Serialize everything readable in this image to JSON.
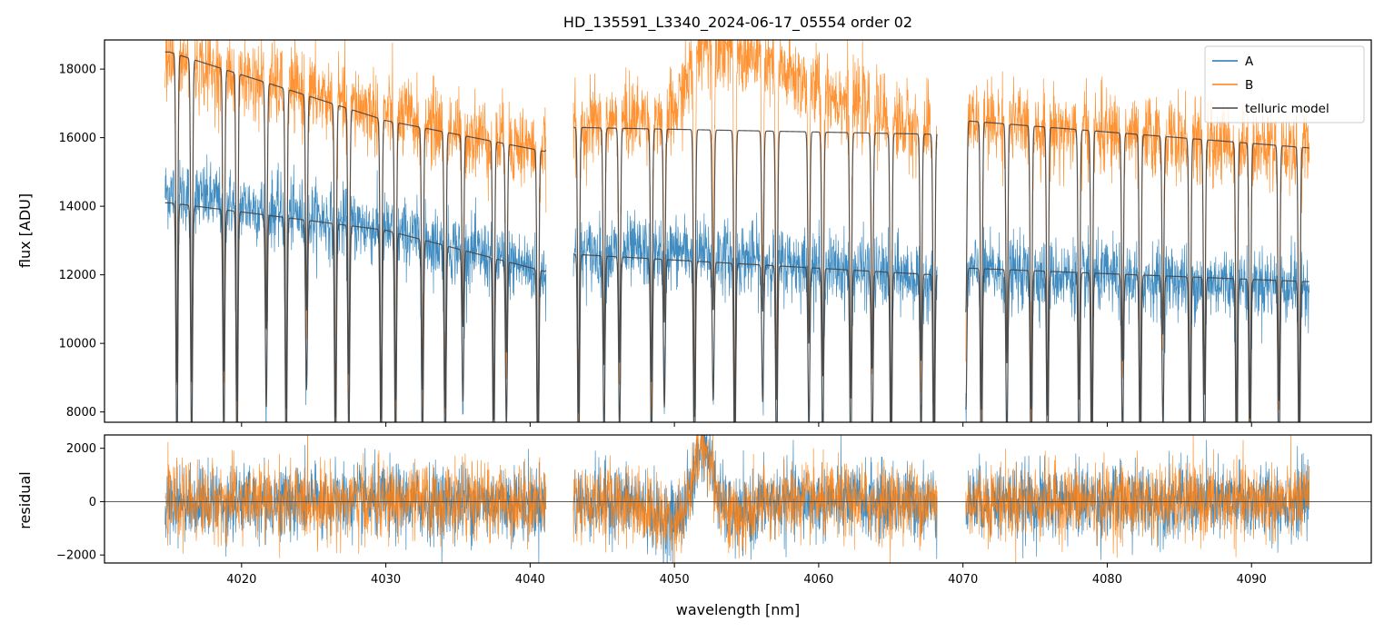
{
  "chart_data": [
    {
      "type": "line",
      "title": "HD_135591_L3340_2024-06-17_05554  order 02",
      "ylabel": "flux [ADU]",
      "xlabel": "",
      "xlim": [
        4010.5,
        4098.3
      ],
      "ylim": [
        7700,
        18850
      ],
      "x_ticks": [
        4020,
        4030,
        4040,
        4050,
        4060,
        4070,
        4080,
        4090
      ],
      "y_ticks": [
        8000,
        10000,
        12000,
        14000,
        16000,
        18000
      ],
      "y_tick_labels": [
        "8000",
        "10000",
        "12000",
        "14000",
        "16000",
        "18000"
      ],
      "x_tick_labels_shown": false,
      "legend_position": "top-right",
      "data_segments": [
        [
          4014.7,
          4041.1
        ],
        [
          4043.0,
          4068.2
        ],
        [
          4070.2,
          4094.0
        ]
      ],
      "series": [
        {
          "name": "A",
          "color": "#1f77b4",
          "description_points": {
            "x": [
              4015,
              4030,
              4041,
              4043,
              4050,
              4068,
              4070,
              4094
            ],
            "level": [
              14400,
              13300,
              12100,
              12600,
              12700,
              11900,
              12100,
              11700
            ]
          }
        },
        {
          "name": "B",
          "color": "#ff7f0e",
          "description_points": {
            "x": [
              4015,
              4030,
              4041,
              4043,
              4050,
              4052,
              4068,
              4070,
              4094
            ],
            "level": [
              18300,
              16700,
              15600,
              16300,
              16700,
              18900,
              16000,
              16500,
              15600
            ]
          }
        },
        {
          "name": "telluric model",
          "color": "#444444",
          "description_points": {
            "x": [
              4015,
              4030,
              4041,
              4043,
              4068,
              4070,
              4094
            ],
            "level_B": [
              18500,
              16500,
              15600,
              16300,
              16100,
              16500,
              15700
            ],
            "level_A": [
              14100,
              13300,
              12100,
              12600,
              12000,
              12200,
              11800
            ]
          }
        }
      ]
    },
    {
      "type": "line",
      "title": "",
      "xlabel": "wavelength [nm]",
      "ylabel": "residual",
      "xlim": [
        4010.5,
        4098.3
      ],
      "ylim": [
        -2300,
        2500
      ],
      "x_ticks": [
        4020,
        4030,
        4040,
        4050,
        4060,
        4070,
        4080,
        4090
      ],
      "x_tick_labels": [
        "4020",
        "4030",
        "4040",
        "4050",
        "4060",
        "4070",
        "4080",
        "4090"
      ],
      "y_ticks": [
        -2000,
        0,
        2000
      ],
      "y_tick_labels": [
        "−2000",
        "0",
        "2000"
      ],
      "zero_line": true,
      "series": [
        {
          "name": "A",
          "color": "#1f77b4"
        },
        {
          "name": "B",
          "color": "#ff7f0e"
        }
      ],
      "features": [
        {
          "x_center": 4052.0,
          "amplitude": 2200,
          "note": "bump"
        }
      ]
    }
  ]
}
